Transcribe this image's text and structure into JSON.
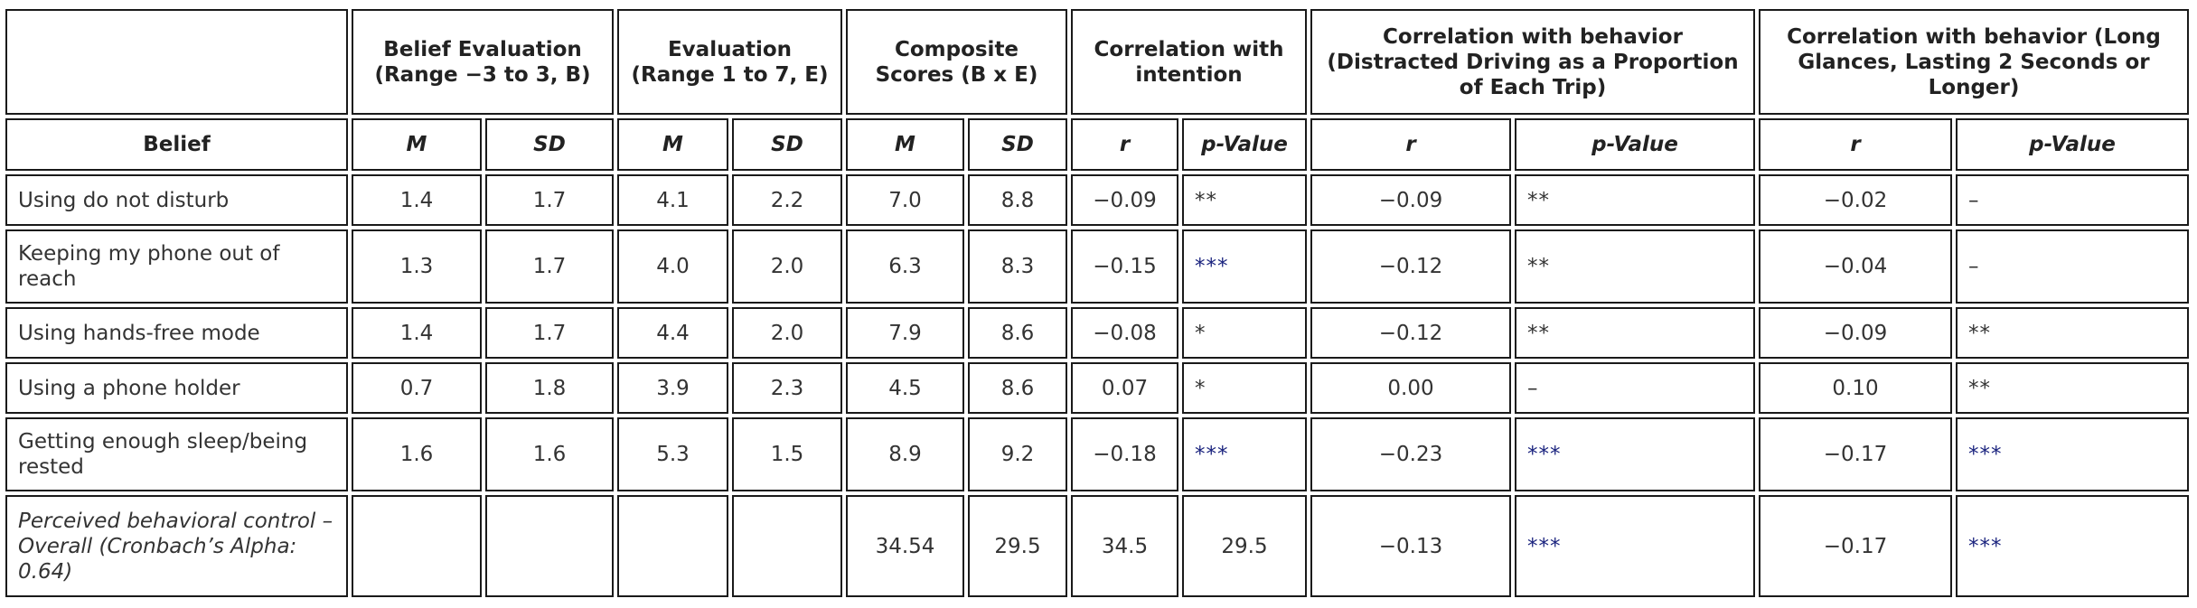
{
  "headers": {
    "group": {
      "belief_eval": "Belief Evaluation (Range −3 to 3, B)",
      "evaluation": "Evaluation (Range 1 to 7, E)",
      "composite": "Composite Scores (B x E)",
      "corr_intention": "Correlation with intention",
      "corr_behavior": "Correlation with behavior (Distracted Driving as a Proportion of Each Trip)",
      "corr_long": "Correlation with behavior (Long Glances, Lasting 2 Seconds or Longer)"
    },
    "sub": [
      "Belief",
      "M",
      "SD",
      "M",
      "SD",
      "M",
      "SD",
      "r",
      "p-Value",
      "r",
      "p-Value",
      "r",
      "p-Value"
    ]
  },
  "rows": [
    {
      "belief": "Using do not disturb",
      "italic": false,
      "cells": [
        "1.4",
        "1.7",
        "4.1",
        "2.2",
        "7.0",
        "8.8",
        "−0.09",
        "**",
        "−0.09",
        "**",
        "−0.02",
        "–"
      ]
    },
    {
      "belief": "Keeping my phone out of reach",
      "italic": false,
      "cells": [
        "1.3",
        "1.7",
        "4.0",
        "2.0",
        "6.3",
        "8.3",
        "−0.15",
        "***",
        "−0.12",
        "**",
        "−0.04",
        "–"
      ]
    },
    {
      "belief": "Using hands-free mode",
      "italic": false,
      "cells": [
        "1.4",
        "1.7",
        "4.4",
        "2.0",
        "7.9",
        "8.6",
        "−0.08",
        "*",
        "−0.12",
        "**",
        "−0.09",
        "**"
      ]
    },
    {
      "belief": "Using a phone holder",
      "italic": false,
      "cells": [
        "0.7",
        "1.8",
        "3.9",
        "2.3",
        "4.5",
        "8.6",
        "0.07",
        "*",
        "0.00",
        "–",
        "0.10",
        "**"
      ]
    },
    {
      "belief": "Getting enough sleep/being rested",
      "italic": false,
      "cells": [
        "1.6",
        "1.6",
        "5.3",
        "1.5",
        "8.9",
        "9.2",
        "−0.18",
        "***",
        "−0.23",
        "***",
        "−0.17",
        "***"
      ]
    },
    {
      "belief": "Perceived behavioral control – Overall (Cronbach’s Alpha: 0.64)",
      "italic": true,
      "cells": [
        "",
        "",
        "",
        "",
        "34.54",
        "29.5",
        "34.5",
        "29.5",
        "−0.13",
        "***",
        "−0.17",
        "***"
      ]
    }
  ],
  "colors": {
    "border": "#1a1a1a",
    "text": "#333333",
    "significance_3star": "#1a237e"
  }
}
